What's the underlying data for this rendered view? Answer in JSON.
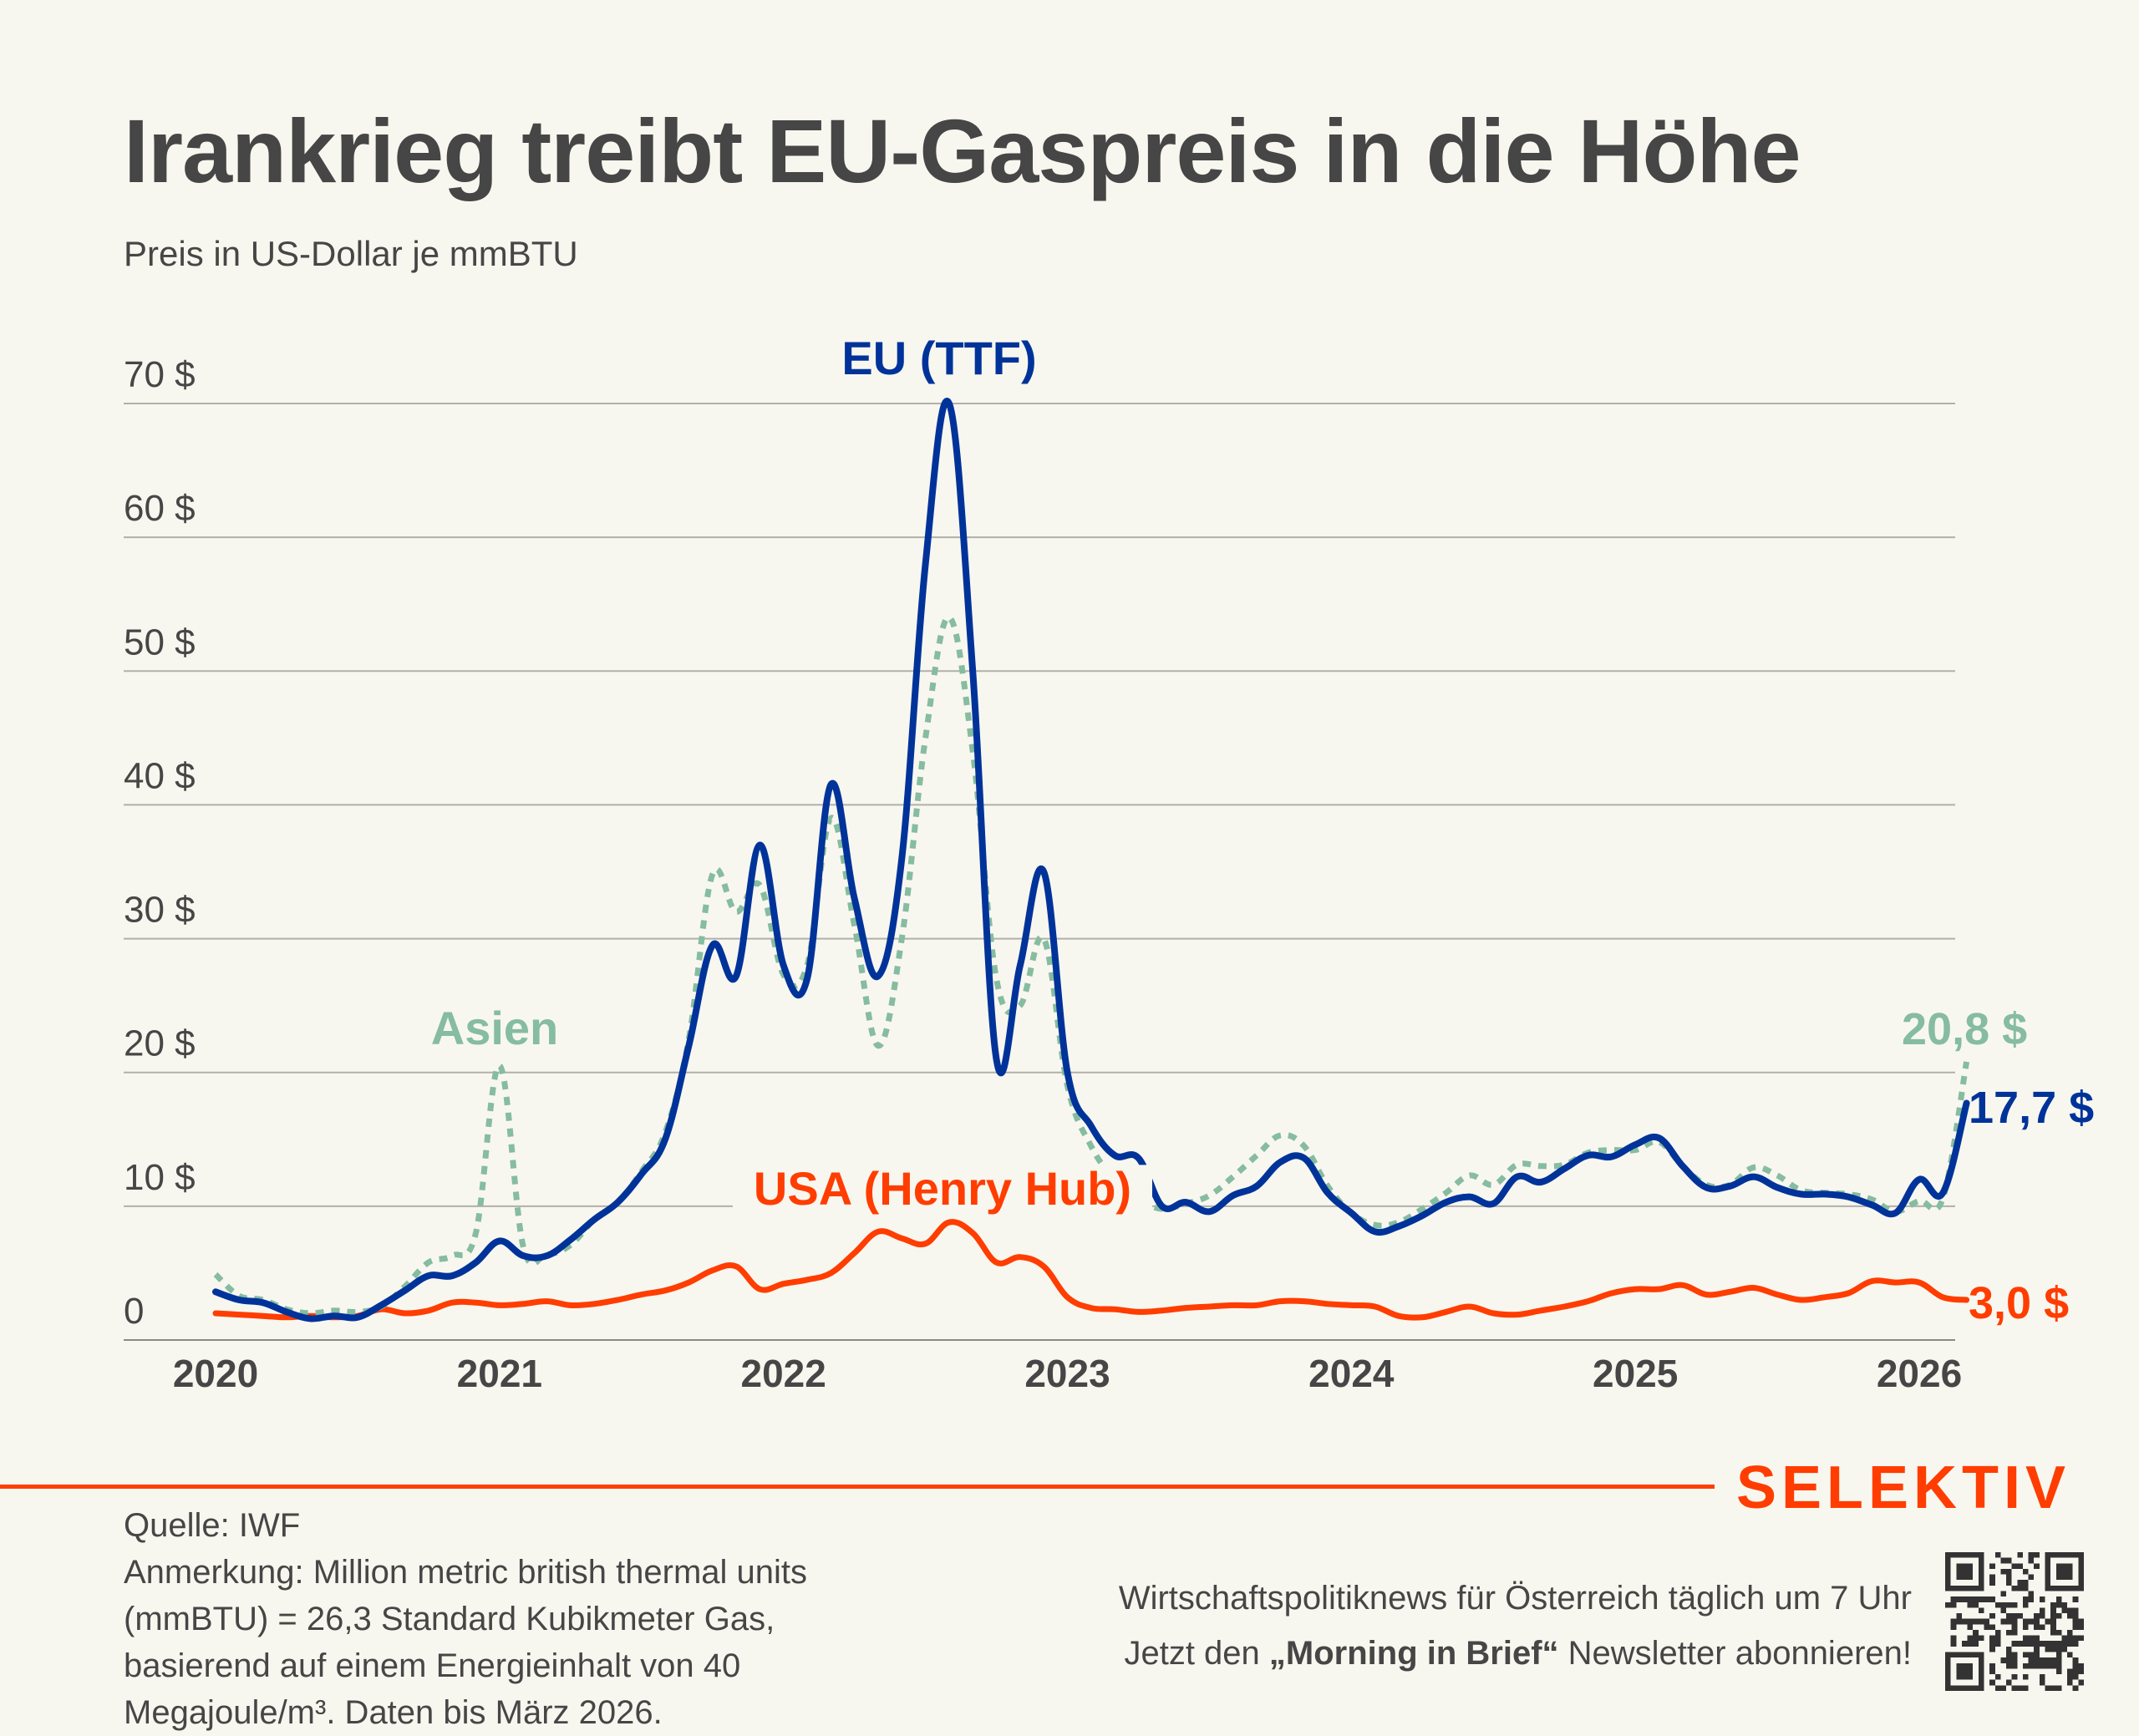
{
  "header": {
    "title": "Irankrieg treibt EU-Gaspreis in die Höhe",
    "subtitle": "Preis in US-Dollar je mmBTU"
  },
  "chart_data": {
    "type": "line",
    "title": "Irankrieg treibt EU-Gaspreis in die Höhe",
    "subtitle": "Preis in US-Dollar je mmBTU",
    "xlabel": "",
    "ylabel": "Preis in US-Dollar je mmBTU",
    "x_start": "2020-01",
    "x_end": "2026-03",
    "x_frequency": "monthly",
    "x_ticks": [
      "2020",
      "2021",
      "2022",
      "2023",
      "2024",
      "2025",
      "2026"
    ],
    "y_ticks": [
      0,
      10,
      20,
      30,
      40,
      50,
      60,
      70
    ],
    "y_tick_labels": [
      "0",
      "10 $",
      "20 $",
      "30 $",
      "40 $",
      "50 $",
      "60 $",
      "70 $"
    ],
    "ylim": [
      0,
      70
    ],
    "grid": true,
    "legend": "inline labels",
    "series": [
      {
        "name": "EU (TTF)",
        "color": "#00339a",
        "style": "solid",
        "label_position": "above-peak",
        "end_label": "17,7 $",
        "values": [
          3.6,
          3.0,
          2.8,
          2.1,
          1.6,
          1.8,
          1.7,
          2.6,
          3.7,
          4.8,
          4.8,
          5.8,
          7.4,
          6.3,
          6.3,
          7.5,
          9.0,
          10.3,
          12.4,
          15.0,
          22.0,
          29.5,
          27.2,
          37.0,
          28.0,
          27.0,
          41.5,
          33.0,
          27.2,
          36.0,
          58.0,
          70.0,
          50.0,
          21.0,
          28.0,
          35.0,
          20.0,
          16.0,
          13.8,
          13.6,
          10.0,
          10.3,
          9.6,
          10.8,
          11.5,
          13.3,
          13.6,
          11.0,
          9.5,
          8.1,
          8.5,
          9.3,
          10.3,
          10.7,
          10.2,
          12.2,
          11.8,
          12.8,
          13.8,
          13.7,
          14.6,
          15.1,
          13.0,
          11.4,
          11.5,
          12.2,
          11.4,
          10.9,
          10.9,
          10.7,
          10.1,
          9.5,
          12.0,
          11.0,
          17.7
        ]
      },
      {
        "name": "Asien",
        "color": "#86bca0",
        "style": "dotted",
        "label_position": "above-2021-spike",
        "end_label": "20,8 $",
        "values": [
          4.9,
          3.3,
          3.0,
          2.3,
          2.0,
          2.2,
          2.1,
          2.5,
          4.0,
          5.8,
          6.3,
          8.0,
          20.5,
          7.0,
          6.4,
          7.1,
          9.0,
          10.3,
          12.6,
          15.5,
          22.5,
          34.8,
          32.0,
          34.0,
          27.3,
          28.0,
          39.0,
          31.0,
          22.0,
          30.0,
          45.0,
          54.0,
          44.0,
          27.0,
          25.0,
          30.0,
          19.0,
          14.5,
          12.0,
          10.5,
          9.8,
          10.2,
          10.8,
          12.2,
          13.8,
          15.3,
          14.5,
          11.5,
          9.5,
          8.6,
          8.8,
          9.8,
          11.0,
          12.3,
          11.6,
          13.1,
          13.0,
          13.1,
          14.0,
          14.2,
          14.2,
          14.8,
          13.0,
          11.6,
          11.6,
          12.9,
          12.3,
          11.2,
          11.0,
          10.9,
          10.5,
          9.6,
          10.4,
          10.6,
          20.8
        ]
      },
      {
        "name": "USA (Henry Hub)",
        "color": "#ff3d00",
        "style": "solid",
        "label_position": "above-2022-peak",
        "end_label": "3,0 $",
        "values": [
          2.0,
          1.9,
          1.8,
          1.7,
          1.8,
          1.7,
          1.8,
          2.3,
          2.0,
          2.2,
          2.8,
          2.8,
          2.6,
          2.7,
          2.9,
          2.6,
          2.7,
          3.0,
          3.4,
          3.7,
          4.3,
          5.2,
          5.5,
          3.8,
          4.2,
          4.5,
          5.0,
          6.5,
          8.1,
          7.6,
          7.2,
          8.8,
          8.0,
          5.8,
          6.2,
          5.5,
          3.2,
          2.4,
          2.3,
          2.1,
          2.2,
          2.4,
          2.5,
          2.6,
          2.6,
          2.9,
          2.9,
          2.7,
          2.6,
          2.5,
          1.8,
          1.7,
          2.1,
          2.5,
          2.0,
          1.9,
          2.2,
          2.5,
          2.9,
          3.5,
          3.8,
          3.8,
          4.1,
          3.4,
          3.6,
          3.9,
          3.4,
          3.0,
          3.2,
          3.5,
          4.4,
          4.3,
          4.3,
          3.2,
          3.0
        ]
      }
    ]
  },
  "footer": {
    "brand": "SELEKTIV",
    "source": "Quelle: IWF",
    "note_lines": [
      "Anmerkung: Million metric british thermal units",
      "(mmBTU) = 26,3 Standard Kubikmeter Gas,",
      "basierend auf einem Energieinhalt von 40",
      "Megajoule/m³. Daten bis März 2026."
    ],
    "promo_line1": "Wirtschaftspolitiknews für Österreich täglich um 7 Uhr",
    "promo_line2_prefix": "Jetzt den ",
    "promo_line2_bold": "„Morning in Brief“",
    "promo_line2_suffix": " Newsletter abonnieren!",
    "qr_code": "qr-code-icon"
  }
}
